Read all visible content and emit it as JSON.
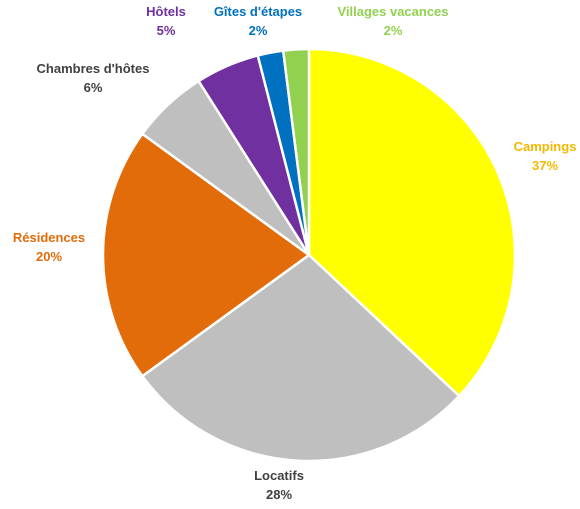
{
  "chart_data": {
    "type": "pie",
    "title": "",
    "unit": "%",
    "slices": [
      {
        "label": "Campings",
        "value": 37,
        "value_text": "37%",
        "color": "#FFFF00",
        "label_color": "#F5B800"
      },
      {
        "label": "Locatifs",
        "value": 28,
        "value_text": "28%",
        "color": "#BFBFBF",
        "label_color": "#404040"
      },
      {
        "label": "Résidences",
        "value": 20,
        "value_text": "20%",
        "color": "#E36C0A",
        "label_color": "#E36C0A"
      },
      {
        "label": "Chambres d'hôtes",
        "value": 6,
        "value_text": "6%",
        "color": "#BFBFBF",
        "label_color": "#404040"
      },
      {
        "label": "Hôtels",
        "value": 5,
        "value_text": "5%",
        "color": "#7030A0",
        "label_color": "#7030A0"
      },
      {
        "label": "Gîtes d'étapes",
        "value": 2,
        "value_text": "2%",
        "color": "#0070C0",
        "label_color": "#0070C0"
      },
      {
        "label": "Villages vacances",
        "value": 2,
        "value_text": "2%",
        "color": "#92D050",
        "label_color": "#92D050"
      }
    ],
    "start_angle": "12 o'clock",
    "direction": "clockwise",
    "legend": "none",
    "labels": "outside"
  }
}
